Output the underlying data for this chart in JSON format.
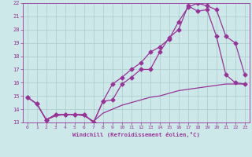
{
  "xlabel": "Windchill (Refroidissement éolien,°C)",
  "background_color": "#cce8e8",
  "grid_color": "#aacccc",
  "line_color": "#993399",
  "xlim": [
    -0.5,
    23.5
  ],
  "ylim": [
    13,
    22
  ],
  "xticks": [
    0,
    1,
    2,
    3,
    4,
    5,
    6,
    7,
    8,
    9,
    10,
    11,
    12,
    13,
    14,
    15,
    16,
    17,
    18,
    19,
    20,
    21,
    22,
    23
  ],
  "yticks": [
    13,
    14,
    15,
    16,
    17,
    18,
    19,
    20,
    21,
    22
  ],
  "series": [
    {
      "x": [
        0,
        1,
        2,
        3,
        4,
        5,
        6,
        7,
        8,
        9,
        10,
        11,
        12,
        13,
        14,
        15,
        16,
        17,
        18,
        19,
        20,
        21,
        22,
        23
      ],
      "y": [
        14.9,
        14.4,
        13.2,
        13.6,
        13.6,
        13.6,
        13.6,
        13.0,
        14.6,
        15.9,
        16.4,
        17.0,
        17.5,
        18.3,
        18.7,
        19.3,
        20.6,
        21.7,
        22.0,
        21.8,
        21.5,
        19.5,
        19.0,
        16.6
      ],
      "marker": "D",
      "marker_size": 2.5,
      "linewidth": 0.9
    },
    {
      "x": [
        0,
        1,
        2,
        3,
        4,
        5,
        6,
        7,
        8,
        9,
        10,
        11,
        12,
        13,
        14,
        15,
        16,
        17,
        18,
        19,
        20,
        21,
        22,
        23
      ],
      "y": [
        14.9,
        14.4,
        13.2,
        13.6,
        13.6,
        13.6,
        13.6,
        13.0,
        14.6,
        14.7,
        15.9,
        16.4,
        17.0,
        17.0,
        18.3,
        19.4,
        20.0,
        21.8,
        21.4,
        21.5,
        19.5,
        16.6,
        16.0,
        15.9
      ],
      "marker": "D",
      "marker_size": 2.5,
      "linewidth": 0.9
    },
    {
      "x": [
        0,
        1,
        2,
        3,
        4,
        5,
        6,
        7,
        8,
        9,
        10,
        11,
        12,
        13,
        14,
        15,
        16,
        17,
        18,
        19,
        20,
        21,
        22,
        23
      ],
      "y": [
        14.9,
        14.4,
        13.2,
        13.5,
        13.6,
        13.6,
        13.5,
        13.1,
        13.7,
        14.0,
        14.3,
        14.5,
        14.7,
        14.9,
        15.0,
        15.2,
        15.4,
        15.5,
        15.6,
        15.7,
        15.8,
        15.9,
        15.9,
        15.9
      ],
      "marker": null,
      "marker_size": 0,
      "linewidth": 0.9
    }
  ]
}
